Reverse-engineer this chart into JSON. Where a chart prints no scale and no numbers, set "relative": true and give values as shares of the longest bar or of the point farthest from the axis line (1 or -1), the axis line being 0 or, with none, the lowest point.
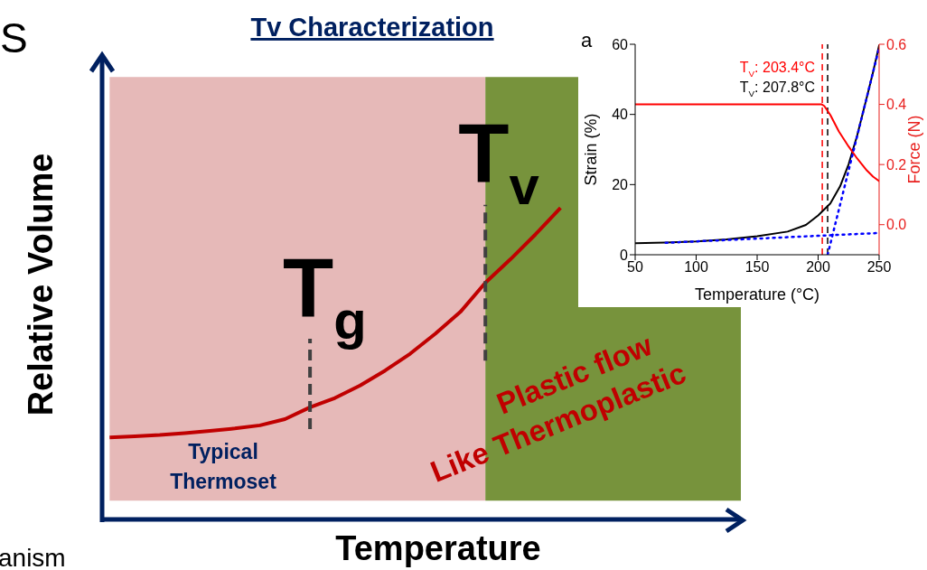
{
  "chart_data": [
    {
      "type": "line",
      "relative": true,
      "title": "Tv Characterization",
      "xlabel": "Temperature",
      "ylabel": "Relative Volume",
      "grid": false,
      "legend": false,
      "marker": "none",
      "categories": [
        null,
        null,
        null,
        null,
        null,
        null,
        null,
        null,
        null,
        null,
        null,
        null,
        null,
        null,
        null,
        null,
        null,
        null,
        null,
        null,
        null,
        null,
        null,
        null,
        null,
        null
      ],
      "series": [
        {
          "color": "#c00000",
          "values": [
            0.263,
            0.267,
            0.271,
            0.277,
            0.284,
            0.292,
            0.302,
            0.322,
            0.36,
            0.39,
            0.43,
            0.478,
            0.532,
            0.596,
            0.666,
            0.76,
            0.835,
            0.915,
            1.0,
            null,
            null,
            null,
            null,
            null,
            null,
            null
          ]
        }
      ],
      "annotations": [
        "T$_{g}$",
        "T$_{v}$",
        "Typical Thermoset",
        "Plastic flow",
        "Like Thermoplastic",
        "S",
        "anism"
      ]
    },
    {
      "type": "line",
      "annotations": [
        "a"
      ],
      "xlabel": "Temperature (°C)",
      "ylabel": "Strain (%)",
      "y2label": "Force (N)",
      "grid": false,
      "legend": false,
      "marker": "none",
      "xlim": [
        50,
        250
      ],
      "xticks": [
        50,
        100,
        150,
        200,
        250
      ],
      "ylim": [
        0,
        60
      ],
      "yticks": [
        0,
        20,
        40,
        60
      ],
      "y2lim": [
        -0.1,
        0.6
      ],
      "y2ticks": [
        {
          "value": 0,
          "label": "0.0"
        },
        0.2,
        0.4,
        0.6
      ],
      "series": [
        {
          "color": "#000000",
          "x": [
            50,
            75,
            100,
            125,
            150,
            175,
            190,
            200,
            210,
            218,
            225,
            232,
            240,
            245,
            250
          ],
          "values": [
            3.3,
            3.5,
            3.8,
            4.4,
            5.3,
            6.6,
            8.5,
            11.2,
            14.6,
            19.5,
            25.8,
            34,
            45,
            52,
            59.7
          ]
        },
        {
          "color": "#ff0000",
          "axis": "y2",
          "x": [
            50,
            100,
            150,
            203,
            205,
            210,
            217,
            225,
            232,
            240,
            245,
            250
          ],
          "values": [
            0.4,
            0.4,
            0.4,
            0.4,
            0.395,
            0.365,
            0.31,
            0.26,
            0.22,
            0.18,
            0.16,
            0.145
          ]
        },
        {
          "color": "#0000ff",
          "line_style": "dotted",
          "x": [
            75,
            250
          ],
          "values": [
            3.4,
            6.2
          ]
        },
        {
          "color": "#0000ff",
          "line_style": "dotted",
          "x": [
            207.8,
            250
          ],
          "values": [
            0,
            59
          ]
        }
      ],
      "ref_lines": [
        {
          "axis": "x",
          "value": 203.4,
          "label": "T$_{V}$: 203.4°C",
          "color": "#ff0000",
          "line_style": "dashed"
        },
        {
          "axis": "x",
          "value": 207.8,
          "label": "T$_{V}$: 207.8°C",
          "color": "#000000",
          "line_style": "dashed"
        }
      ]
    }
  ]
}
